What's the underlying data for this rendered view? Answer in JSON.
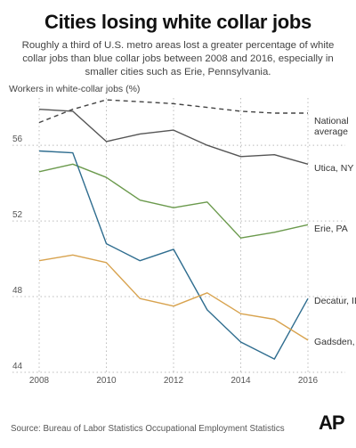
{
  "chart_data": {
    "type": "line",
    "title": "Cities losing white collar jobs",
    "subtitle": "Roughly a third of U.S. metro areas lost a greater percentage of white collar jobs than blue collar jobs between 2008 and 2016, especially in smaller cities such as Erie, Pennsylvania.",
    "ylabel": "Workers in white-collar jobs (%)",
    "xlabel": "",
    "x": [
      2008,
      2009,
      2010,
      2011,
      2012,
      2013,
      2014,
      2015,
      2016
    ],
    "xticks": [
      "2008",
      "2010",
      "2012",
      "2014",
      "2016"
    ],
    "yticks": [
      "44",
      "48",
      "52",
      "56"
    ],
    "ylim": [
      44,
      58.5
    ],
    "xlim": [
      2008,
      2016
    ],
    "grid": "dotted",
    "legend": "direct labels at line ends",
    "series": [
      {
        "name": "National average",
        "name_lines": [
          "National",
          "average"
        ],
        "color": "#444444",
        "dash": true,
        "values": [
          57.2,
          57.9,
          58.4,
          58.3,
          58.2,
          58.0,
          57.8,
          57.7,
          57.7
        ]
      },
      {
        "name": "Utica, NY",
        "color": "#555555",
        "dash": false,
        "values": [
          57.9,
          57.8,
          56.2,
          56.6,
          56.8,
          56.0,
          55.4,
          55.5,
          55.0
        ]
      },
      {
        "name": "Erie, PA",
        "color": "#6b9a4d",
        "dash": false,
        "values": [
          54.6,
          55.0,
          54.3,
          53.1,
          52.7,
          53.0,
          51.1,
          51.4,
          51.8
        ]
      },
      {
        "name": "Decatur, IL",
        "color": "#2f6d8f",
        "dash": false,
        "values": [
          55.7,
          55.6,
          50.8,
          49.9,
          50.5,
          47.3,
          45.6,
          44.7,
          47.9
        ]
      },
      {
        "name": "Gadsden, AL",
        "color": "#d8a34f",
        "dash": false,
        "values": [
          49.9,
          50.2,
          49.8,
          47.9,
          47.5,
          48.2,
          47.1,
          46.8,
          45.7
        ]
      }
    ],
    "source": "Source: Bureau of Labor Statistics Occupational Employment Statistics",
    "logo": "AP"
  }
}
